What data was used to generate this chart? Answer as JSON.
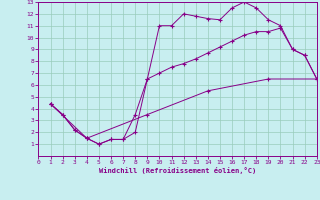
{
  "xlabel": "Windchill (Refroidissement éolien,°C)",
  "xlim": [
    0,
    23
  ],
  "ylim": [
    0,
    13
  ],
  "xticks": [
    0,
    1,
    2,
    3,
    4,
    5,
    6,
    7,
    8,
    9,
    10,
    11,
    12,
    13,
    14,
    15,
    16,
    17,
    18,
    19,
    20,
    21,
    22,
    23
  ],
  "yticks": [
    1,
    2,
    3,
    4,
    5,
    6,
    7,
    8,
    9,
    10,
    11,
    12,
    13
  ],
  "bg_color": "#c8eef0",
  "line_color": "#880088",
  "grid_color": "#99ccbb",
  "line1_x": [
    1,
    2,
    3,
    4,
    5,
    6,
    7,
    8,
    9,
    10,
    11,
    12,
    13,
    14,
    15,
    16,
    17,
    18,
    19,
    20,
    21,
    22,
    23
  ],
  "line1_y": [
    4.4,
    3.5,
    2.2,
    1.5,
    1.0,
    1.4,
    1.4,
    2.0,
    6.5,
    11.0,
    11.0,
    12.0,
    11.8,
    11.6,
    11.5,
    12.5,
    13.0,
    12.5,
    11.5,
    11.0,
    9.0,
    8.5,
    6.5
  ],
  "line2_x": [
    1,
    2,
    3,
    4,
    5,
    6,
    7,
    8,
    9,
    10,
    11,
    12,
    13,
    14,
    15,
    16,
    17,
    18,
    19,
    20,
    21,
    22,
    23
  ],
  "line2_y": [
    4.4,
    3.5,
    2.2,
    1.5,
    1.0,
    1.4,
    1.4,
    3.5,
    6.5,
    7.0,
    7.5,
    7.8,
    8.2,
    8.7,
    9.2,
    9.7,
    10.2,
    10.5,
    10.5,
    10.8,
    9.0,
    8.5,
    6.5
  ],
  "line3_x": [
    1,
    4,
    9,
    14,
    19,
    23
  ],
  "line3_y": [
    4.4,
    1.5,
    3.5,
    5.5,
    6.5,
    6.5
  ]
}
